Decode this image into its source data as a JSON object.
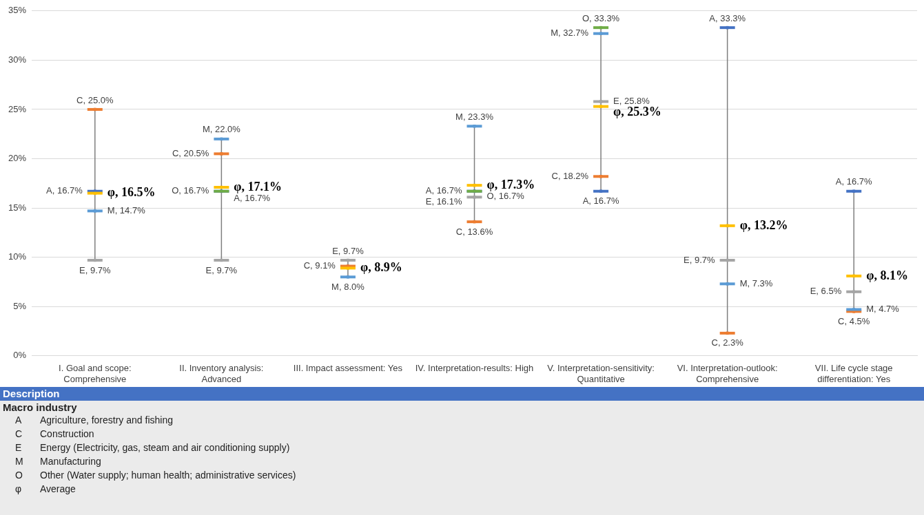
{
  "chart_data": {
    "type": "scatter",
    "categories": [
      "I. Goal and scope: Comprehensive",
      "II. Inventory analysis: Advanced",
      "III. Impact assessment: Yes",
      "IV. Interpretation-results: High",
      "V. Interpretation-sensitivity: Quantitative",
      "VI. Interpretation-outlook: Comprehensive",
      "VII. Life cycle stage differentiation: Yes"
    ],
    "series": [
      {
        "color": "#4472c4",
        "values": [
          16.7,
          16.7,
          null,
          16.7,
          16.7,
          33.3,
          16.7
        ],
        "value_labels": [
          "A, 16.7%",
          "A, 16.7%",
          null,
          "A, 16.7%",
          "A, 16.7%",
          "A, 33.3%",
          "A, 16.7%"
        ]
      },
      {
        "color": "#ed7d31",
        "values": [
          25.0,
          20.5,
          9.1,
          13.6,
          18.2,
          2.3,
          4.5
        ],
        "value_labels": [
          "C, 25.0%",
          "C, 20.5%",
          "C, 9.1%",
          "C, 13.6%",
          "C, 18.2%",
          "C, 2.3%",
          "C, 4.5%"
        ]
      },
      {
        "color": "#a5a5a5",
        "values": [
          9.7,
          9.7,
          9.7,
          16.1,
          25.8,
          9.7,
          6.5
        ],
        "value_labels": [
          "E, 9.7%",
          "E, 9.7%",
          "E, 9.7%",
          "E, 16.1%",
          "E, 25.8%",
          "E, 9.7%",
          "E, 6.5%"
        ]
      },
      {
        "color": "#5b9bd5",
        "values": [
          14.7,
          22.0,
          8.0,
          23.3,
          32.7,
          7.3,
          4.7
        ],
        "value_labels": [
          "M, 14.7%",
          "M, 22.0%",
          "M, 8.0%",
          "M, 23.3%",
          "M, 32.7%",
          "M, 7.3%",
          "M, 4.7%"
        ]
      },
      {
        "color": "#70ad47",
        "values": [
          null,
          16.7,
          null,
          16.7,
          33.3,
          null,
          null
        ],
        "value_labels": [
          null,
          "O, 16.7%",
          null,
          "O, 16.7%",
          "O, 33.3%",
          null,
          null
        ]
      },
      {
        "color": "#ffc000",
        "values": [
          16.5,
          17.1,
          8.9,
          17.3,
          25.3,
          13.2,
          8.1
        ],
        "value_labels": [
          "φ, 16.5%",
          "φ, 17.1%",
          "φ, 8.9%",
          "φ, 17.3%",
          "φ, 25.3%",
          "φ, 13.2%",
          "φ, 8.1%"
        ]
      }
    ],
    "ylim": [
      0,
      35
    ],
    "yticks": [
      {
        "value": 0,
        "label": "0%"
      },
      {
        "value": 5,
        "label": "5%"
      },
      {
        "value": 10,
        "label": "10%"
      },
      {
        "value": 15,
        "label": "15%"
      },
      {
        "value": 20,
        "label": "20%"
      },
      {
        "value": 25,
        "label": "25%"
      },
      {
        "value": 30,
        "label": "30%"
      },
      {
        "value": 35,
        "label": "35%"
      }
    ],
    "grid": "y",
    "legend": false,
    "annotations": [
      "Description",
      "Macro industry",
      "A",
      "Agriculture, forestry and fishing",
      "C",
      "Construction",
      "E",
      "Energy (Electricity, gas, steam and air conditioning supply)",
      "M",
      "Manufacturing",
      "O",
      "Other (Water supply; human health; administrative services)",
      "φ",
      "Average"
    ]
  }
}
